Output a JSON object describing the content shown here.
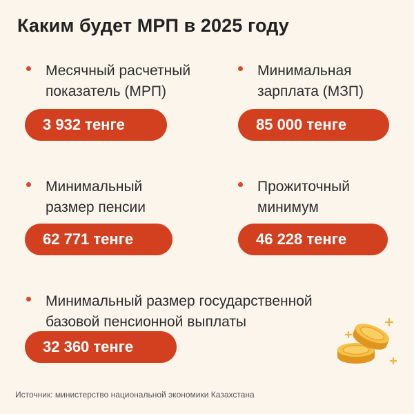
{
  "title": "Каким будет МРП в 2025 году",
  "items": [
    {
      "label_line1": "Месячный расчетный",
      "label_line2": "показатель (МРП)",
      "value": "3 932 тенге"
    },
    {
      "label_line1": "Минимальная",
      "label_line2": "зарплата (МЗП)",
      "value": "85 000 тенге"
    },
    {
      "label_line1": "Минимальный",
      "label_line2": "размер пенсии",
      "value": "62 771 тенге"
    },
    {
      "label_line1": "Прожиточный",
      "label_line2": "минимум",
      "value": "46 228 тенге"
    },
    {
      "label_line1": "Минимальный размер государственной",
      "label_line2": "базовой пенсионной выплаты",
      "value": "32 360 тенге"
    }
  ],
  "source": "Источник: министерство национальной экономики Казахстана",
  "colors": {
    "accent": "#d2401f",
    "background": "#fbf5ec",
    "coin": "#f2b33a"
  },
  "decoration": "coins-icon"
}
